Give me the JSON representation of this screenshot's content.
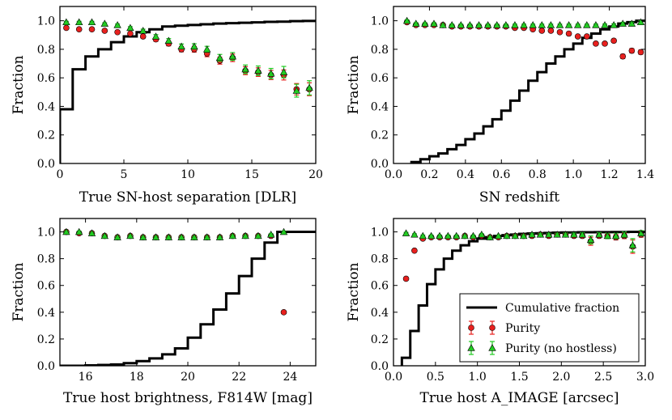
{
  "colors": {
    "purity": "#e8201e",
    "purity_nohost": "#22cc22",
    "cumulative": "#000000",
    "purity_err": "#e8201e",
    "nohost_err": "#22cc22"
  },
  "legend": {
    "cumulative": "Cumulative fraction",
    "purity": "Purity",
    "purity_nohost": "Purity (no hostless)"
  },
  "chart_data": [
    {
      "type": "scatter",
      "title": "",
      "xlabel": "True SN-host separation [DLR]",
      "ylabel": "Fraction",
      "xlim": [
        0,
        20
      ],
      "ylim": [
        0,
        1.1
      ],
      "xticks": [
        0,
        5,
        10,
        15,
        20
      ],
      "xtick_labels": [
        "0",
        "5",
        "10",
        "15",
        "20"
      ],
      "yticks": [
        0,
        0.2,
        0.4,
        0.6,
        0.8,
        1.0
      ],
      "ytick_labels": [
        "0.0",
        "0.2",
        "0.4",
        "0.6",
        "0.8",
        "1.0"
      ],
      "cumulative": {
        "edges": [
          0,
          1,
          2,
          3,
          4,
          5,
          6,
          7,
          8,
          9,
          10,
          11,
          12,
          13,
          14,
          15,
          16,
          17,
          18,
          19,
          20
        ],
        "values": [
          0.38,
          0.66,
          0.75,
          0.8,
          0.85,
          0.89,
          0.92,
          0.94,
          0.96,
          0.965,
          0.97,
          0.975,
          0.98,
          0.983,
          0.986,
          0.989,
          0.992,
          0.994,
          0.997,
          0.999
        ]
      },
      "purity": {
        "x": [
          0.5,
          1.5,
          2.5,
          3.5,
          4.5,
          5.5,
          6.5,
          7.5,
          8.5,
          9.5,
          10.5,
          11.5,
          12.5,
          13.5,
          14.5,
          15.5,
          16.5,
          17.5,
          18.5,
          19.5
        ],
        "y": [
          0.95,
          0.94,
          0.94,
          0.93,
          0.92,
          0.91,
          0.89,
          0.87,
          0.84,
          0.8,
          0.8,
          0.77,
          0.72,
          0.74,
          0.65,
          0.64,
          0.62,
          0.62,
          0.52,
          0.52
        ],
        "err": [
          0.005,
          0.005,
          0.006,
          0.007,
          0.008,
          0.01,
          0.012,
          0.014,
          0.016,
          0.018,
          0.02,
          0.022,
          0.024,
          0.026,
          0.028,
          0.03,
          0.032,
          0.035,
          0.04,
          0.045
        ]
      },
      "purity_nohost": {
        "x": [
          0.5,
          1.5,
          2.5,
          3.5,
          4.5,
          5.5,
          6.5,
          7.5,
          8.5,
          9.5,
          10.5,
          11.5,
          12.5,
          13.5,
          14.5,
          15.5,
          16.5,
          17.5,
          18.5,
          19.5
        ],
        "y": [
          0.99,
          0.99,
          0.99,
          0.98,
          0.97,
          0.95,
          0.93,
          0.89,
          0.86,
          0.82,
          0.82,
          0.8,
          0.74,
          0.75,
          0.66,
          0.65,
          0.63,
          0.64,
          0.51,
          0.53
        ],
        "err": [
          0.004,
          0.004,
          0.005,
          0.006,
          0.007,
          0.009,
          0.011,
          0.013,
          0.015,
          0.017,
          0.019,
          0.021,
          0.024,
          0.027,
          0.03,
          0.033,
          0.036,
          0.04,
          0.045,
          0.05
        ]
      }
    },
    {
      "type": "scatter",
      "title": "",
      "xlabel": "SN redshift",
      "ylabel": "Fraction",
      "xlim": [
        0,
        1.4
      ],
      "ylim": [
        0,
        1.1
      ],
      "xticks": [
        0,
        0.2,
        0.4,
        0.6,
        0.8,
        1.0,
        1.2,
        1.4
      ],
      "xtick_labels": [
        "0.0",
        "0.2",
        "0.4",
        "0.6",
        "0.8",
        "1.0",
        "1.2",
        "1.4"
      ],
      "yticks": [
        0,
        0.2,
        0.4,
        0.6,
        0.8,
        1.0
      ],
      "ytick_labels": [
        "0.0",
        "0.2",
        "0.4",
        "0.6",
        "0.8",
        "1.0"
      ],
      "cumulative": {
        "edges": [
          0.1,
          0.15,
          0.2,
          0.25,
          0.3,
          0.35,
          0.4,
          0.45,
          0.5,
          0.55,
          0.6,
          0.65,
          0.7,
          0.75,
          0.8,
          0.85,
          0.9,
          0.95,
          1.0,
          1.05,
          1.1,
          1.15,
          1.2,
          1.25,
          1.3,
          1.35,
          1.4
        ],
        "values": [
          0.01,
          0.03,
          0.05,
          0.07,
          0.1,
          0.13,
          0.17,
          0.21,
          0.26,
          0.31,
          0.37,
          0.44,
          0.51,
          0.58,
          0.64,
          0.7,
          0.75,
          0.8,
          0.84,
          0.88,
          0.91,
          0.94,
          0.96,
          0.98,
          0.99,
          1.0
        ]
      },
      "purity": {
        "x": [
          0.075,
          0.125,
          0.175,
          0.225,
          0.275,
          0.325,
          0.375,
          0.425,
          0.475,
          0.525,
          0.575,
          0.625,
          0.675,
          0.725,
          0.775,
          0.825,
          0.875,
          0.925,
          0.975,
          1.025,
          1.075,
          1.125,
          1.175,
          1.225,
          1.275,
          1.325,
          1.375
        ],
        "y": [
          0.99,
          0.97,
          0.97,
          0.97,
          0.97,
          0.96,
          0.96,
          0.96,
          0.96,
          0.96,
          0.96,
          0.96,
          0.95,
          0.95,
          0.94,
          0.93,
          0.93,
          0.92,
          0.91,
          0.89,
          0.89,
          0.84,
          0.84,
          0.86,
          0.75,
          0.79,
          0.78
        ],
        "err": [
          0.005,
          0.005,
          0.005,
          0.005,
          0.005,
          0.005,
          0.005,
          0.005,
          0.005,
          0.005,
          0.005,
          0.005,
          0.005,
          0.005,
          0.005,
          0.006,
          0.006,
          0.007,
          0.007,
          0.008,
          0.009,
          0.01,
          0.01,
          0.012,
          0.015,
          0.015,
          0.015
        ]
      },
      "purity_nohost": {
        "x": [
          0.075,
          0.125,
          0.175,
          0.225,
          0.275,
          0.325,
          0.375,
          0.425,
          0.475,
          0.525,
          0.575,
          0.625,
          0.675,
          0.725,
          0.775,
          0.825,
          0.875,
          0.925,
          0.975,
          1.025,
          1.075,
          1.125,
          1.175,
          1.225,
          1.275,
          1.325,
          1.375
        ],
        "y": [
          1.0,
          0.98,
          0.98,
          0.98,
          0.97,
          0.97,
          0.97,
          0.97,
          0.97,
          0.97,
          0.97,
          0.97,
          0.97,
          0.97,
          0.97,
          0.97,
          0.97,
          0.97,
          0.97,
          0.97,
          0.97,
          0.97,
          0.97,
          0.97,
          0.98,
          0.98,
          0.99
        ],
        "err": [
          0.004,
          0.004,
          0.004,
          0.004,
          0.004,
          0.004,
          0.004,
          0.004,
          0.004,
          0.004,
          0.004,
          0.004,
          0.004,
          0.004,
          0.004,
          0.004,
          0.004,
          0.005,
          0.005,
          0.005,
          0.006,
          0.006,
          0.007,
          0.008,
          0.009,
          0.01,
          0.01
        ]
      }
    },
    {
      "type": "scatter",
      "title": "",
      "xlabel": "True host brightness, F814W [mag]",
      "ylabel": "Fraction",
      "xlim": [
        15,
        25
      ],
      "ylim": [
        0,
        1.1
      ],
      "xticks": [
        16,
        18,
        20,
        22,
        24
      ],
      "xtick_labels": [
        "16",
        "18",
        "20",
        "22",
        "24"
      ],
      "yticks": [
        0,
        0.2,
        0.4,
        0.6,
        0.8,
        1.0
      ],
      "ytick_labels": [
        "0.0",
        "0.2",
        "0.4",
        "0.6",
        "0.8",
        "1.0"
      ],
      "cumulative": {
        "edges": [
          15,
          15.5,
          16,
          16.5,
          17,
          17.5,
          18,
          18.5,
          19,
          19.5,
          20,
          20.5,
          21,
          21.5,
          22,
          22.5,
          23,
          23.5,
          24,
          24.5,
          25
        ],
        "values": [
          0.0,
          0.0,
          0.003,
          0.006,
          0.01,
          0.02,
          0.035,
          0.055,
          0.085,
          0.13,
          0.21,
          0.31,
          0.42,
          0.54,
          0.67,
          0.8,
          0.92,
          1.0,
          1.0,
          1.0
        ]
      },
      "purity": {
        "x": [
          15.25,
          15.75,
          16.25,
          16.75,
          17.25,
          17.75,
          18.25,
          18.75,
          19.25,
          19.75,
          20.25,
          20.75,
          21.25,
          21.75,
          22.25,
          22.75,
          23.25,
          23.75
        ],
        "y": [
          1.0,
          0.99,
          0.99,
          0.97,
          0.96,
          0.97,
          0.96,
          0.96,
          0.96,
          0.96,
          0.96,
          0.96,
          0.96,
          0.97,
          0.97,
          0.97,
          0.97,
          0.4
        ],
        "err": [
          0.005,
          0.005,
          0.005,
          0.005,
          0.005,
          0.005,
          0.005,
          0.005,
          0.005,
          0.005,
          0.004,
          0.004,
          0.004,
          0.004,
          0.004,
          0.004,
          0.004,
          0.01
        ]
      },
      "purity_nohost": {
        "x": [
          15.25,
          15.75,
          16.25,
          16.75,
          17.25,
          17.75,
          18.25,
          18.75,
          19.25,
          19.75,
          20.25,
          20.75,
          21.25,
          21.75,
          22.25,
          22.75,
          23.25,
          23.75
        ],
        "y": [
          1.0,
          1.0,
          0.99,
          0.97,
          0.96,
          0.97,
          0.96,
          0.96,
          0.96,
          0.96,
          0.96,
          0.96,
          0.96,
          0.97,
          0.97,
          0.97,
          0.98,
          1.0
        ],
        "err": [
          0.005,
          0.005,
          0.005,
          0.005,
          0.005,
          0.005,
          0.005,
          0.005,
          0.005,
          0.005,
          0.004,
          0.004,
          0.004,
          0.004,
          0.004,
          0.004,
          0.004,
          0.004
        ]
      }
    },
    {
      "type": "scatter",
      "title": "",
      "xlabel": "True host A_IMAGE [arcsec]",
      "ylabel": "Fraction",
      "xlim": [
        0,
        3.0
      ],
      "ylim": [
        0,
        1.1
      ],
      "xticks": [
        0,
        0.5,
        1.0,
        1.5,
        2.0,
        2.5,
        3.0
      ],
      "xtick_labels": [
        "0.0",
        "0.5",
        "1.0",
        "1.5",
        "2.0",
        "2.5",
        "3.0"
      ],
      "yticks": [
        0,
        0.2,
        0.4,
        0.6,
        0.8,
        1.0
      ],
      "ytick_labels": [
        "0.0",
        "0.2",
        "0.4",
        "0.6",
        "0.8",
        "1.0"
      ],
      "legend_position": "lower-right",
      "cumulative": {
        "edges": [
          0.1,
          0.2,
          0.3,
          0.4,
          0.5,
          0.6,
          0.7,
          0.8,
          0.9,
          1.0,
          1.1,
          1.2,
          1.3,
          1.4,
          1.5,
          1.6,
          1.7,
          1.8,
          1.9,
          2.0,
          2.2,
          2.4,
          2.6,
          2.8,
          3.0
        ],
        "values": [
          0.06,
          0.26,
          0.45,
          0.61,
          0.72,
          0.8,
          0.86,
          0.9,
          0.93,
          0.95,
          0.96,
          0.97,
          0.975,
          0.98,
          0.985,
          0.988,
          0.99,
          0.992,
          0.994,
          0.996,
          0.997,
          0.998,
          0.999,
          1.0
        ]
      },
      "purity": {
        "x": [
          0.15,
          0.25,
          0.35,
          0.45,
          0.55,
          0.65,
          0.75,
          0.85,
          0.95,
          1.05,
          1.15,
          1.25,
          1.35,
          1.45,
          1.55,
          1.65,
          1.75,
          1.85,
          1.95,
          2.05,
          2.15,
          2.25,
          2.35,
          2.45,
          2.55,
          2.65,
          2.75,
          2.85,
          2.95
        ],
        "y": [
          0.65,
          0.86,
          0.95,
          0.96,
          0.96,
          0.96,
          0.96,
          0.97,
          0.96,
          0.97,
          0.96,
          0.96,
          0.97,
          0.97,
          0.97,
          0.97,
          0.98,
          0.97,
          0.98,
          0.98,
          0.97,
          0.97,
          0.93,
          0.97,
          0.97,
          0.96,
          0.97,
          0.89,
          0.98
        ],
        "err": [
          0.01,
          0.01,
          0.006,
          0.005,
          0.005,
          0.005,
          0.005,
          0.005,
          0.005,
          0.005,
          0.006,
          0.006,
          0.007,
          0.007,
          0.008,
          0.008,
          0.009,
          0.01,
          0.01,
          0.012,
          0.012,
          0.015,
          0.03,
          0.015,
          0.02,
          0.02,
          0.02,
          0.05,
          0.02
        ]
      },
      "purity_nohost": {
        "x": [
          0.15,
          0.25,
          0.35,
          0.45,
          0.55,
          0.65,
          0.75,
          0.85,
          0.95,
          1.05,
          1.15,
          1.25,
          1.35,
          1.45,
          1.55,
          1.65,
          1.75,
          1.85,
          1.95,
          2.05,
          2.15,
          2.25,
          2.35,
          2.45,
          2.55,
          2.65,
          2.75,
          2.85,
          2.95
        ],
        "y": [
          0.99,
          0.98,
          0.97,
          0.97,
          0.97,
          0.97,
          0.97,
          0.97,
          0.97,
          0.98,
          0.96,
          0.97,
          0.97,
          0.97,
          0.97,
          0.98,
          0.98,
          0.98,
          0.98,
          0.98,
          0.98,
          0.98,
          0.94,
          0.98,
          0.97,
          0.97,
          0.98,
          0.9,
          0.99
        ],
        "err": [
          0.005,
          0.004,
          0.004,
          0.004,
          0.004,
          0.004,
          0.004,
          0.004,
          0.004,
          0.005,
          0.005,
          0.006,
          0.006,
          0.007,
          0.007,
          0.008,
          0.008,
          0.009,
          0.01,
          0.011,
          0.012,
          0.014,
          0.03,
          0.015,
          0.02,
          0.02,
          0.02,
          0.05,
          0.02
        ]
      }
    }
  ]
}
